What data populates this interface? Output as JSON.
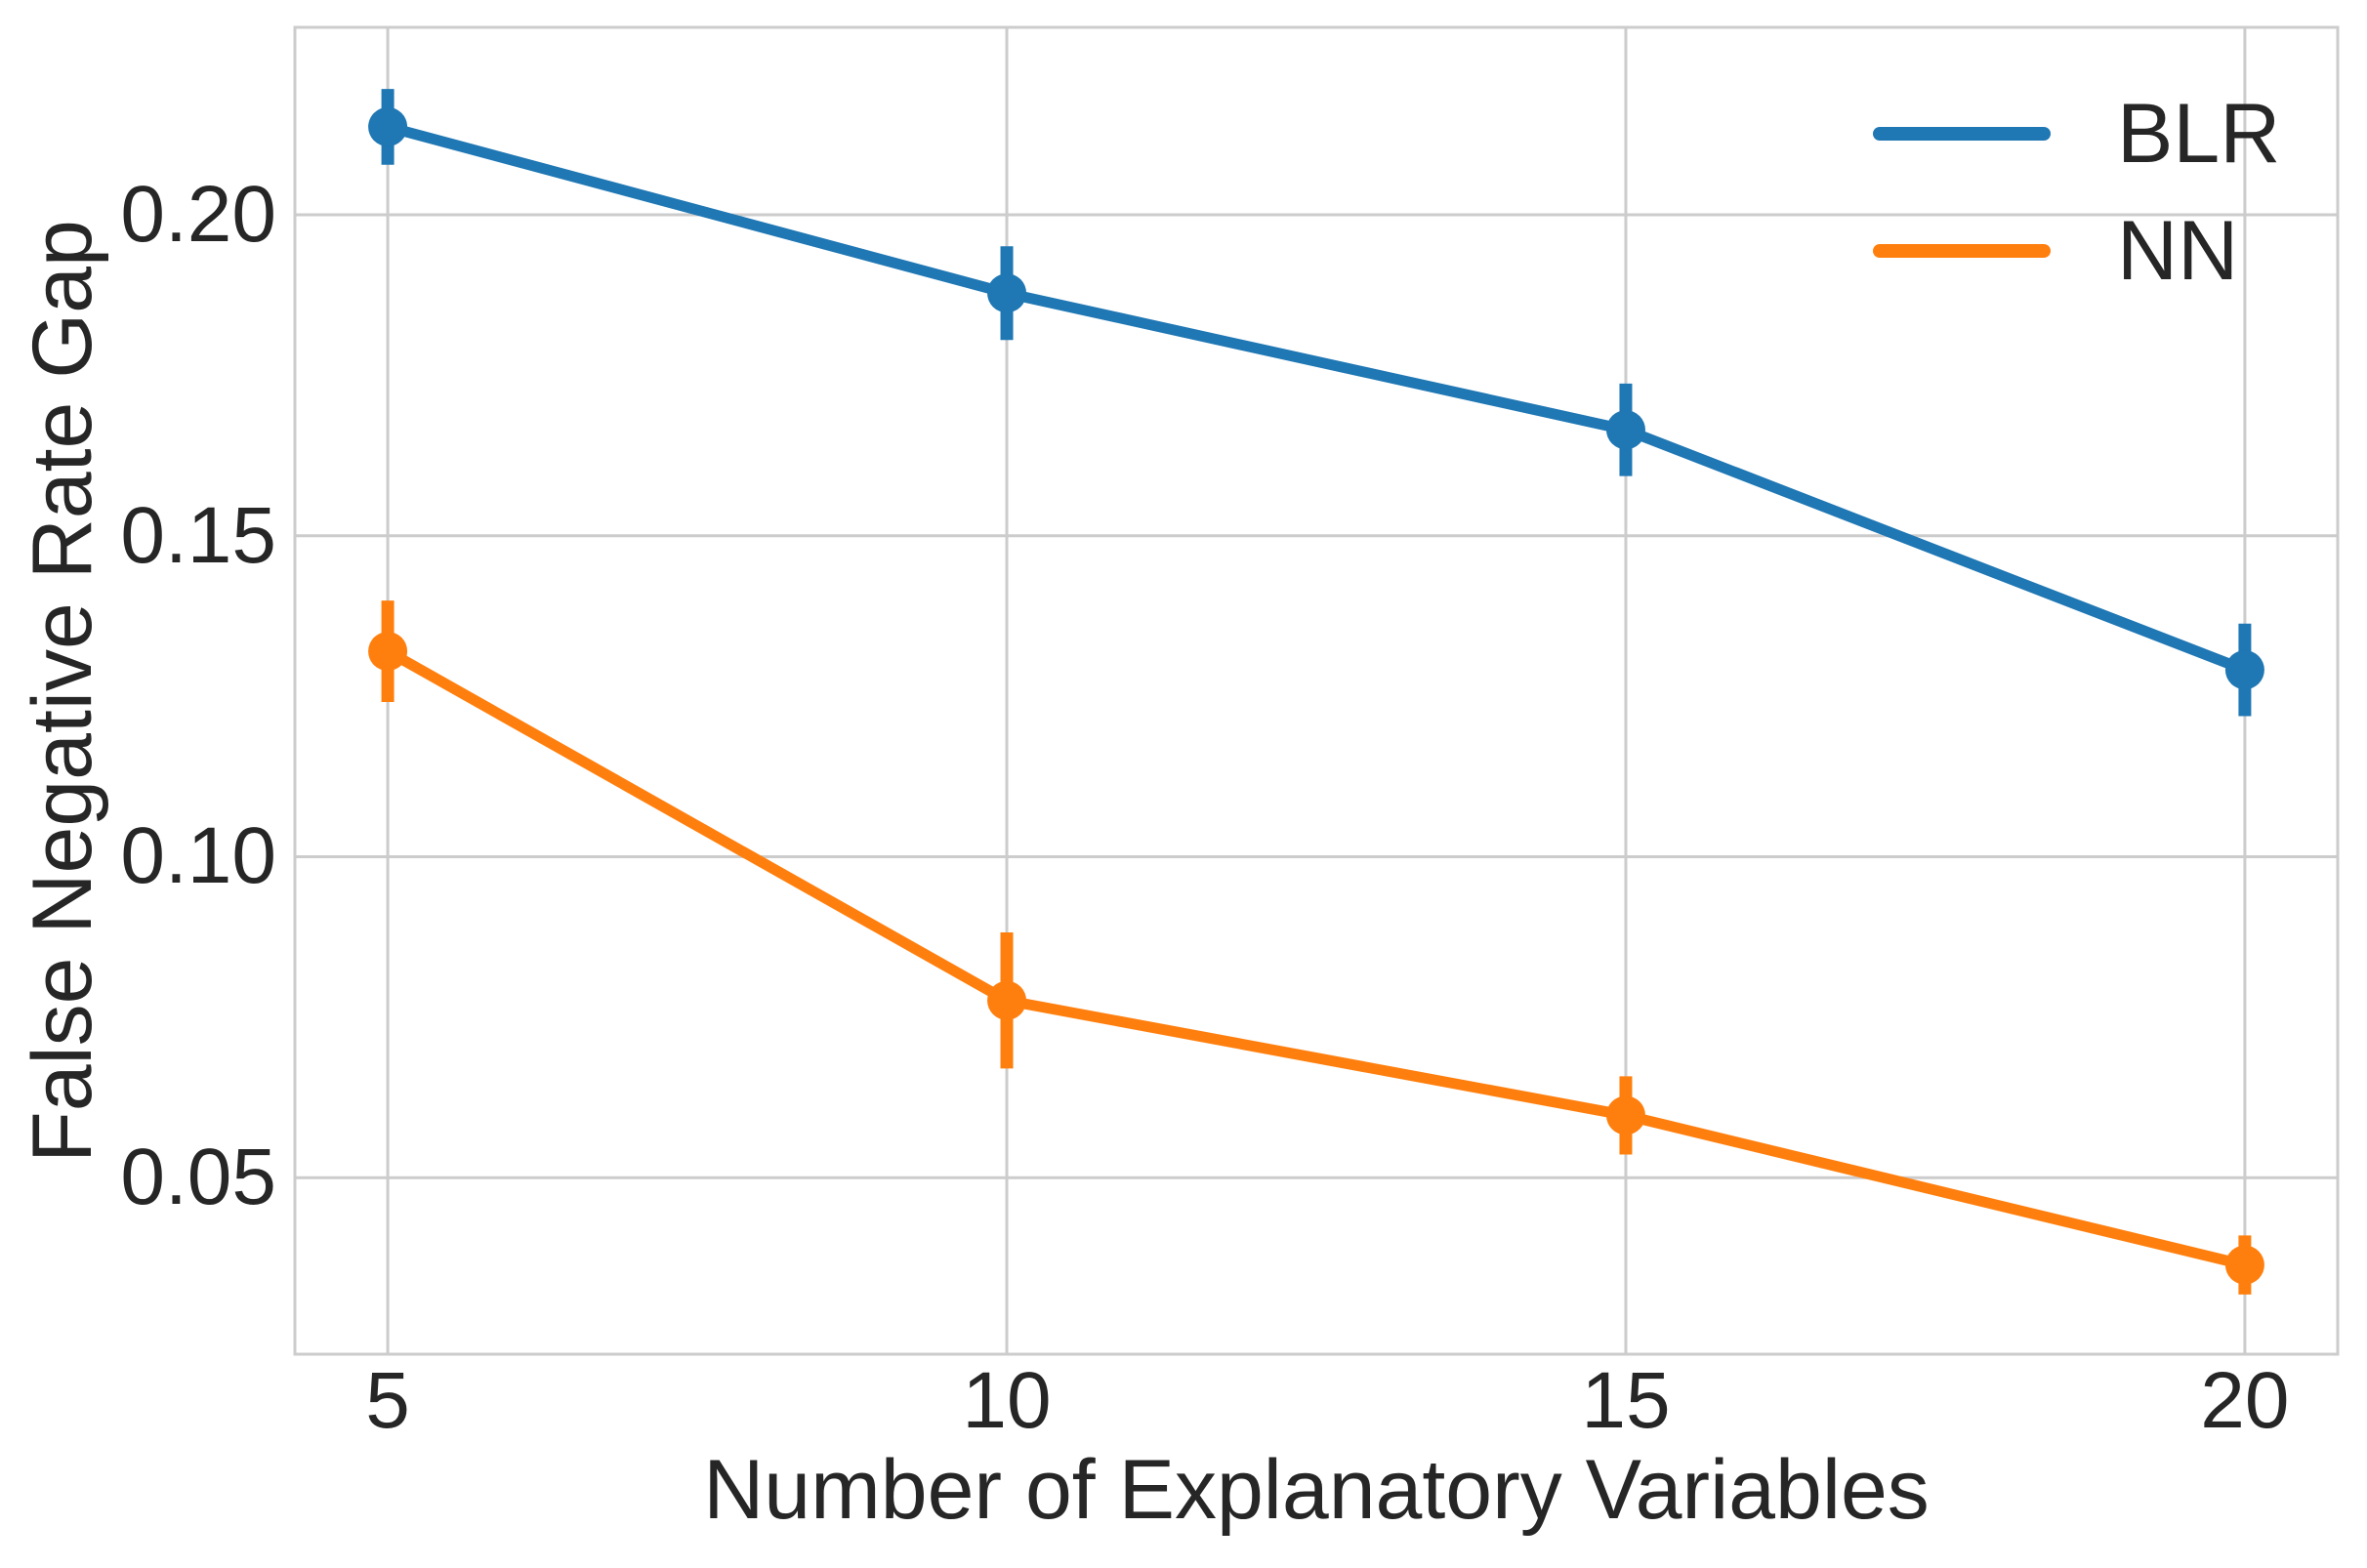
{
  "chart_data": {
    "type": "line",
    "title": "",
    "xlabel": "Number of Explanatory Variables",
    "ylabel": "False Negative Rate Gap",
    "x": [
      5,
      10,
      15,
      20
    ],
    "x_tick_labels": [
      "5",
      "10",
      "15",
      "20"
    ],
    "y_ticks": [
      0.05,
      0.1,
      0.15,
      0.2
    ],
    "y_tick_labels": [
      "0.05",
      "0.10",
      "0.15",
      "0.20"
    ],
    "xlim": [
      4.25,
      20.75
    ],
    "ylim": [
      0.0225,
      0.2292
    ],
    "grid": true,
    "legend_position": "upper right",
    "series": [
      {
        "name": "BLR",
        "color": "#1f77b4",
        "values": [
          0.2137,
          0.1878,
          0.1665,
          0.1291
        ],
        "errors": [
          0.0059,
          0.0073,
          0.0072,
          0.0072
        ]
      },
      {
        "name": "NN",
        "color": "#ff7f0e",
        "values": [
          0.132,
          0.0776,
          0.0597,
          0.0364
        ],
        "errors": [
          0.0079,
          0.0106,
          0.0061,
          0.0046
        ]
      }
    ],
    "style": {
      "grid_color": "#cccccc",
      "spine_color": "#cccccc",
      "text_color": "#262626",
      "background": "#ffffff"
    }
  }
}
